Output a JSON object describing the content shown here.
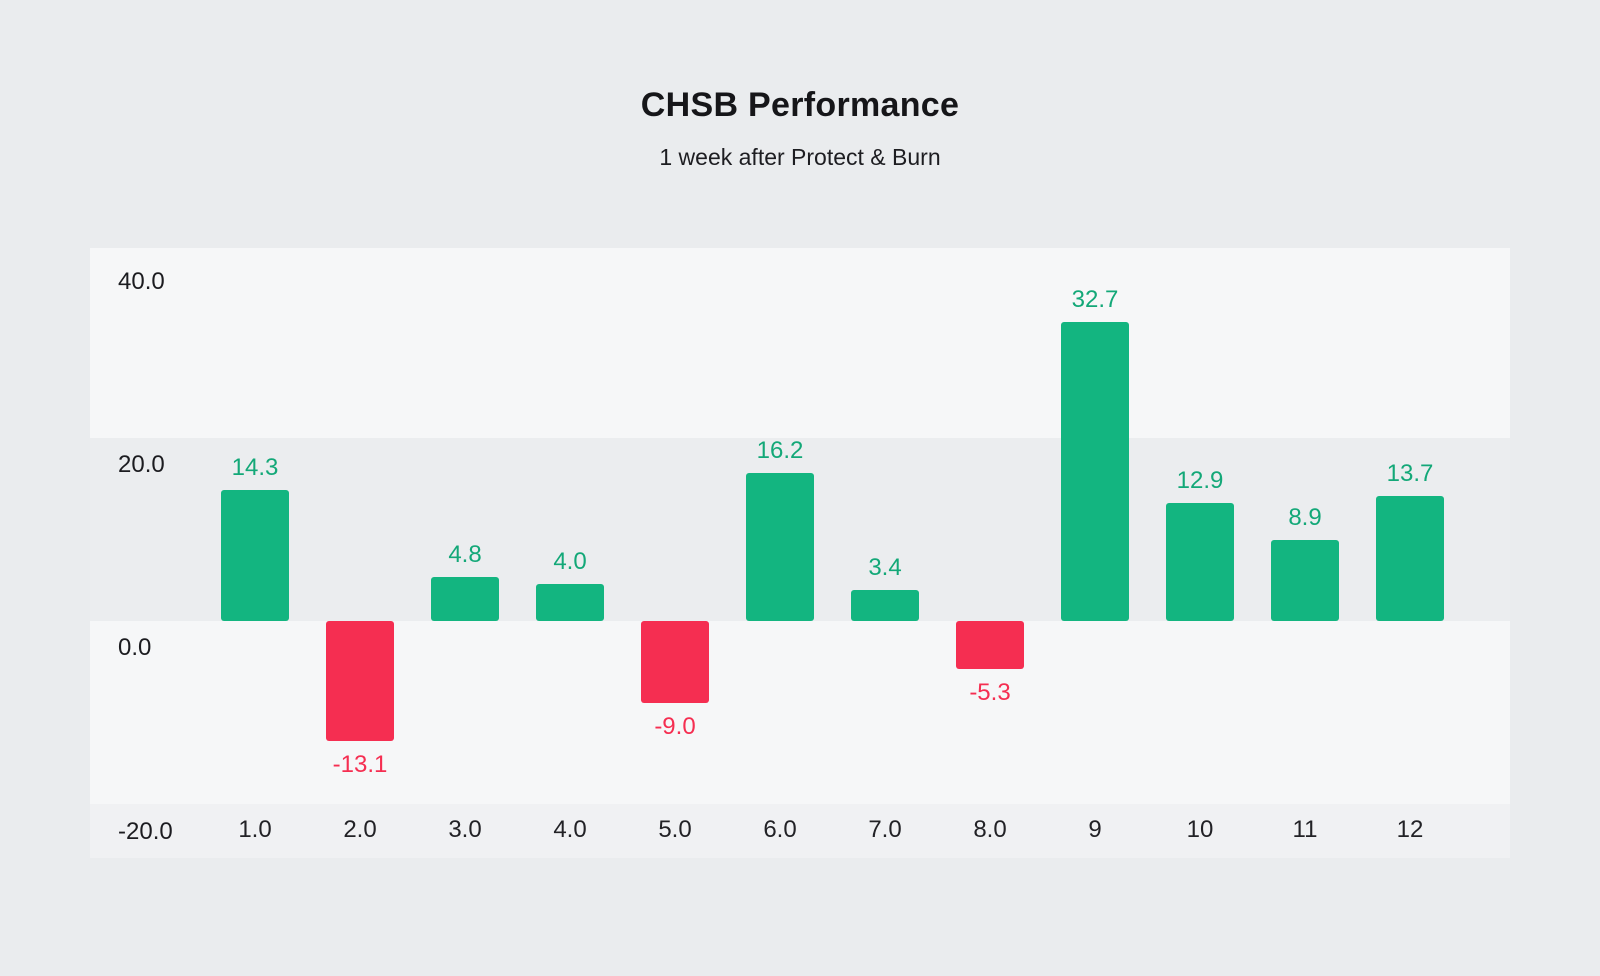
{
  "chart_data": {
    "type": "bar",
    "title": "CHSB Performance",
    "subtitle": "1 week after Protect & Burn",
    "categories": [
      "1.0",
      "2.0",
      "3.0",
      "4.0",
      "5.0",
      "6.0",
      "7.0",
      "8.0",
      "9",
      "10",
      "11",
      "12"
    ],
    "values": [
      14.3,
      -13.1,
      4.8,
      4.0,
      -9.0,
      16.2,
      3.4,
      -5.3,
      32.7,
      12.9,
      8.9,
      13.7
    ],
    "value_labels": [
      "14.3",
      "-13.1",
      "4.8",
      "4.0",
      "-9.0",
      "16.2",
      "3.4",
      "-5.3",
      "32.7",
      "12.9",
      "8.9",
      "13.7"
    ],
    "y_ticks": [
      "40.0",
      "20.0",
      "0.0",
      "-20.0"
    ],
    "ylim": [
      -20,
      45
    ],
    "xlabel": "",
    "ylabel": "",
    "legend": "none",
    "grid": "banded-horizontal",
    "colors": {
      "positive": "#13b580",
      "negative": "#f52e51",
      "positive_label": "#13a878",
      "negative_label": "#f52e51",
      "background": "#eaecee"
    }
  }
}
